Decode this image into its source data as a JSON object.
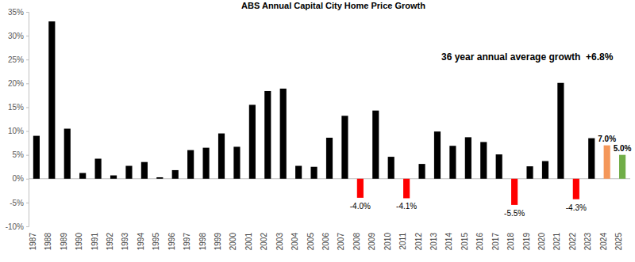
{
  "chart_data": {
    "type": "bar",
    "title": "ABS Annual Capital City Home Price Growth",
    "annotation": "36 year annual average growth  +6.8%",
    "categories": [
      "1987",
      "1988",
      "1989",
      "1990",
      "1991",
      "1992",
      "1993",
      "1994",
      "1995",
      "1996",
      "1997",
      "1998",
      "1999",
      "2000",
      "2001",
      "2002",
      "2003",
      "2004",
      "2005",
      "2006",
      "2007",
      "2008",
      "2009",
      "2010",
      "2011",
      "2012",
      "2013",
      "2014",
      "2015",
      "2016",
      "2017",
      "2018",
      "2019",
      "2020",
      "2021",
      "2022",
      "2023",
      "2024",
      "2025"
    ],
    "values": [
      9,
      33,
      10.5,
      1.2,
      4.2,
      0.7,
      2.7,
      3.5,
      0.3,
      1.8,
      6,
      6.5,
      9.5,
      6.7,
      15.5,
      18.4,
      18.9,
      2.7,
      2.5,
      8.6,
      13.2,
      -4.0,
      14.3,
      4.6,
      -4.1,
      3.1,
      9.9,
      6.9,
      8.7,
      7.7,
      5.1,
      -5.5,
      2.6,
      3.7,
      20.1,
      -4.3,
      8.5,
      7.0,
      5.0
    ],
    "value_labels": [
      null,
      null,
      null,
      null,
      null,
      null,
      null,
      null,
      null,
      null,
      null,
      null,
      null,
      null,
      null,
      null,
      null,
      null,
      null,
      null,
      null,
      "-4.0%",
      null,
      null,
      "-4.1%",
      null,
      null,
      null,
      null,
      null,
      null,
      "-5.5%",
      null,
      null,
      null,
      "-4.3%",
      null,
      "7.0%",
      "5.0%"
    ],
    "colors": [
      "#000000",
      "#000000",
      "#000000",
      "#000000",
      "#000000",
      "#000000",
      "#000000",
      "#000000",
      "#000000",
      "#000000",
      "#000000",
      "#000000",
      "#000000",
      "#000000",
      "#000000",
      "#000000",
      "#000000",
      "#000000",
      "#000000",
      "#000000",
      "#000000",
      "#ff0000",
      "#000000",
      "#000000",
      "#ff0000",
      "#000000",
      "#000000",
      "#000000",
      "#000000",
      "#000000",
      "#000000",
      "#ff0000",
      "#000000",
      "#000000",
      "#000000",
      "#ff0000",
      "#000000",
      "#f4975a",
      "#70ad47"
    ],
    "ylim": [
      -10,
      35
    ],
    "yticks": [
      {
        "value": -10,
        "label": "-10%"
      },
      {
        "value": -5,
        "label": "-5%"
      },
      {
        "value": 0,
        "label": "0%"
      },
      {
        "value": 5,
        "label": "5%"
      },
      {
        "value": 10,
        "label": "10%"
      },
      {
        "value": 15,
        "label": "15%"
      },
      {
        "value": 20,
        "label": "20%"
      },
      {
        "value": 25,
        "label": "25%"
      },
      {
        "value": 30,
        "label": "30%"
      },
      {
        "value": 35,
        "label": "35%"
      }
    ],
    "grid": false
  }
}
